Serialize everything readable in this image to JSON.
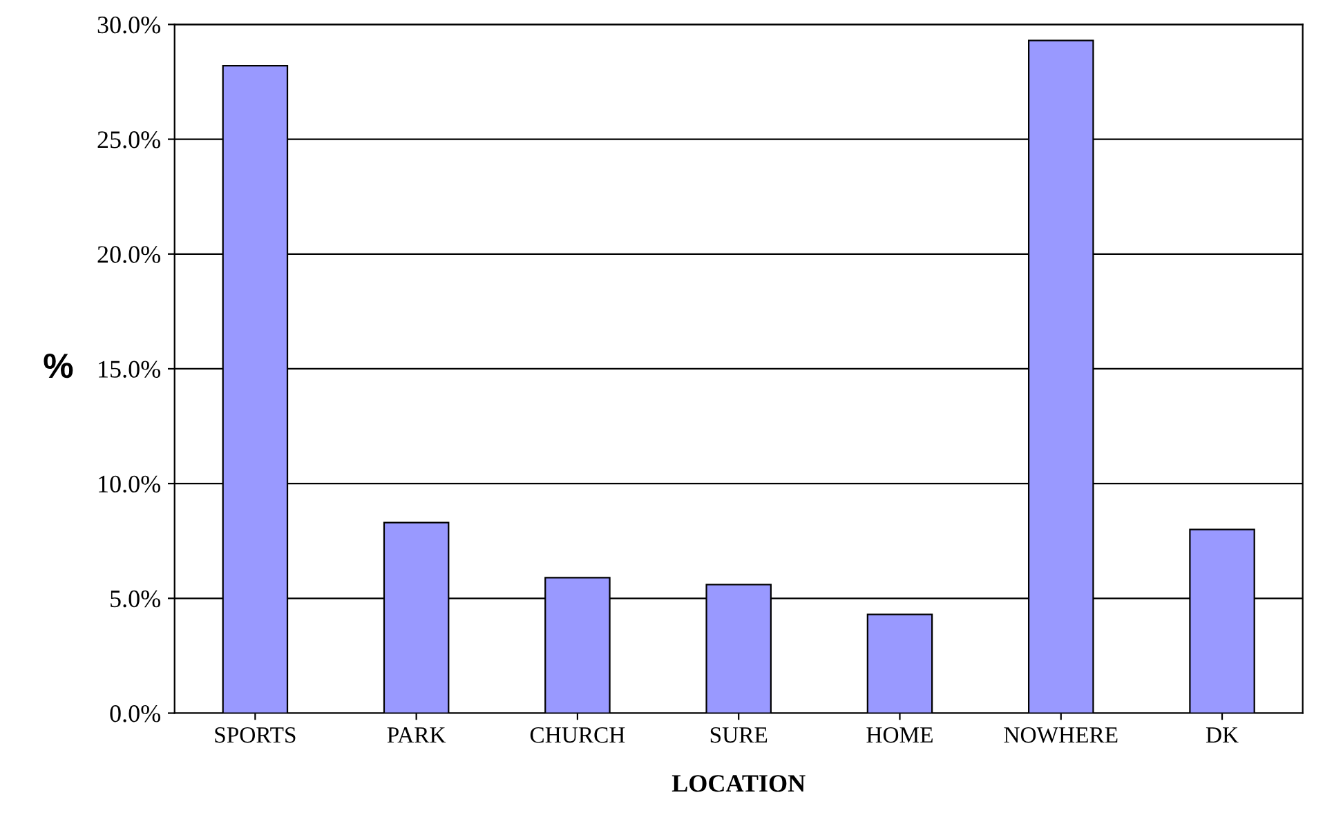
{
  "chart_data": {
    "type": "bar",
    "xlabel": "LOCATION",
    "ylabel": "%",
    "categories": [
      "SPORTS",
      "PARK",
      "CHURCH",
      "SURE",
      "HOME",
      "NOWHERE",
      "DK"
    ],
    "series": [
      {
        "color": "#9999ff",
        "values": [
          28.2,
          8.3,
          5.9,
          5.6,
          4.3,
          29.3,
          8.0
        ]
      }
    ],
    "ylim": [
      0,
      30
    ],
    "yticks": [
      {
        "value": 0,
        "label": "0.0%"
      },
      {
        "value": 5,
        "label": "5.0%"
      },
      {
        "value": 10,
        "label": "10.0%"
      },
      {
        "value": 15,
        "label": "15.0%"
      },
      {
        "value": 20,
        "label": "20.0%"
      },
      {
        "value": 25,
        "label": "25.0%"
      },
      {
        "value": 30,
        "label": "30.0%"
      }
    ],
    "grid": "y"
  }
}
